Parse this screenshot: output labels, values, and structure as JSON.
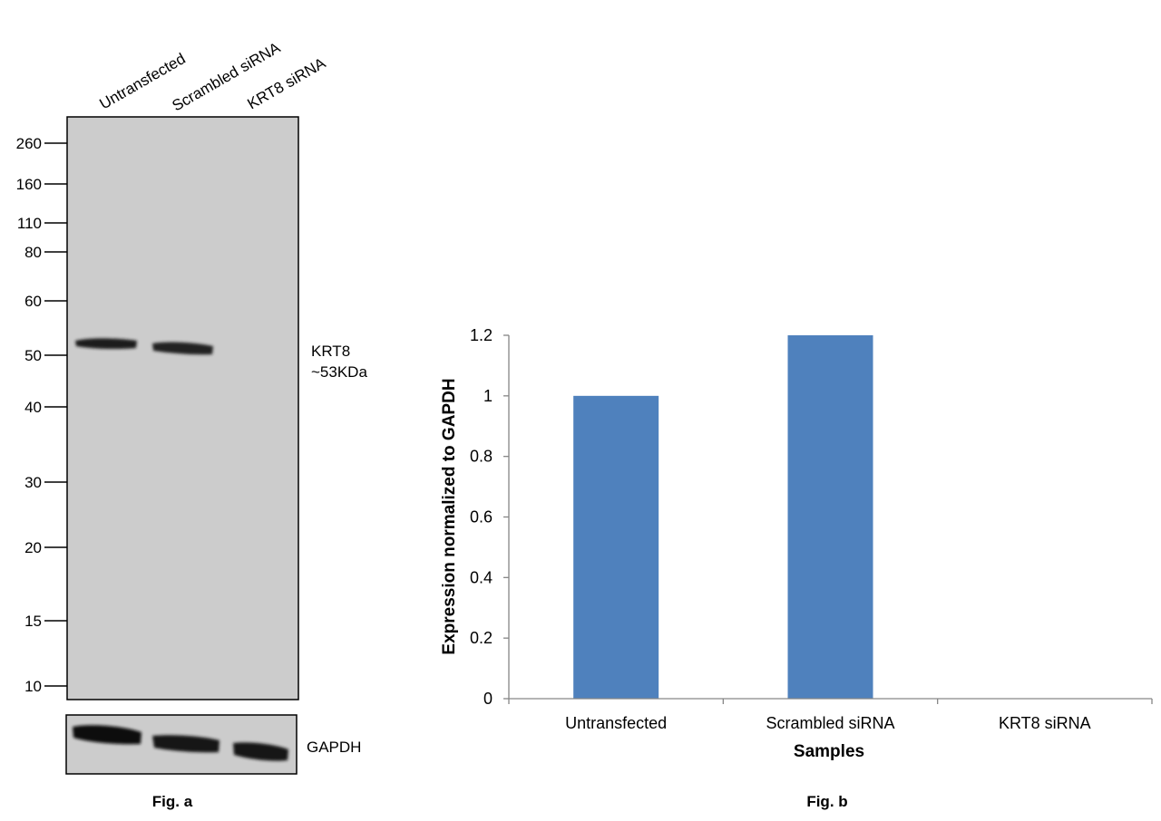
{
  "western_blot": {
    "lanes": [
      "Untransfected",
      "Scrambled siRNA",
      "KRT8 siRNA"
    ],
    "markers": [
      {
        "label": "260",
        "kda": 260
      },
      {
        "label": "160",
        "kda": 160
      },
      {
        "label": "110",
        "kda": 110
      },
      {
        "label": "80",
        "kda": 80
      },
      {
        "label": "60",
        "kda": 60
      },
      {
        "label": "50",
        "kda": 50
      },
      {
        "label": "40",
        "kda": 40
      },
      {
        "label": "30",
        "kda": 30
      },
      {
        "label": "20",
        "kda": 20
      },
      {
        "label": "15",
        "kda": 15
      },
      {
        "label": "10",
        "kda": 10
      }
    ],
    "target_label_line1": "KRT8",
    "target_label_line2": "~53KDa",
    "loading_control_label": "GAPDH",
    "caption": "Fig. a",
    "colors": {
      "membrane": "#cccccc",
      "band": "#1c1c1c"
    }
  },
  "chart_data": {
    "type": "bar",
    "categories": [
      "Untransfected",
      "Scrambled siRNA",
      "KRT8 siRNA"
    ],
    "values": [
      1.0,
      1.2,
      0.0
    ],
    "ylim": [
      0,
      1.2
    ],
    "yticks": [
      "0",
      "0.2",
      "0.4",
      "0.6",
      "0.8",
      "1",
      "1.2"
    ],
    "xlabel": "Samples",
    "ylabel": "Expression normalized to GAPDH",
    "caption": "Fig. b",
    "bar_color": "#4f81bd",
    "grid": false,
    "legend": "none"
  }
}
